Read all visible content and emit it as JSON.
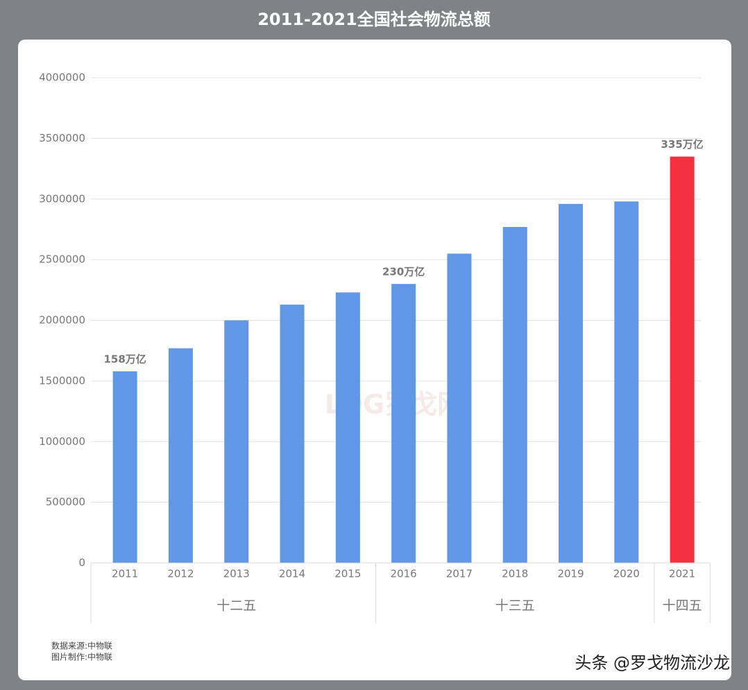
{
  "chart_data": {
    "type": "bar",
    "title": "2011-2021全国社会物流总额",
    "categories": [
      "2011",
      "2012",
      "2013",
      "2014",
      "2015",
      "2016",
      "2017",
      "2018",
      "2019",
      "2020",
      "2021"
    ],
    "values": [
      1580000,
      1770000,
      2000000,
      2130000,
      2230000,
      2300000,
      2550000,
      2770000,
      2960000,
      2980000,
      3350000
    ],
    "value_labels": [
      "158万亿",
      null,
      null,
      null,
      null,
      "230万亿",
      null,
      null,
      null,
      null,
      "335万亿"
    ],
    "colors": [
      "#6097e6",
      "#6097e6",
      "#6097e6",
      "#6097e6",
      "#6097e6",
      "#6097e6",
      "#6097e6",
      "#6097e6",
      "#6097e6",
      "#6097e6",
      "#f2303f"
    ],
    "groups": [
      {
        "name": "十二五",
        "count": 5
      },
      {
        "name": "十三五",
        "count": 5
      },
      {
        "name": "十四五",
        "count": 1
      }
    ],
    "ylim": [
      0,
      4000000
    ],
    "yticks": [
      0,
      500000,
      1000000,
      1500000,
      2000000,
      2500000,
      3000000,
      3500000,
      4000000
    ],
    "grid": true,
    "notes": [
      "数据来源:中物联",
      "图片制作:中物联"
    ],
    "watermark": "LOG罗戈网",
    "credit": "头条 @罗戈物流沙龙"
  }
}
